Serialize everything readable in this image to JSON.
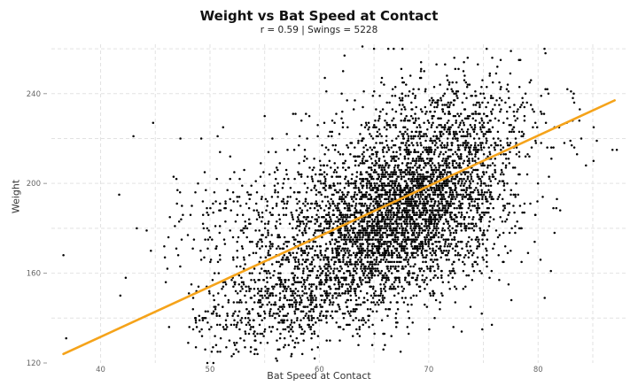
{
  "chart_data": {
    "type": "scatter",
    "title": "Weight vs Bat Speed at Contact",
    "subtitle": "r =  0.59  | Swings = 5228",
    "xlabel": "Bat Speed at Contact",
    "ylabel": "Weight",
    "xlim": [
      35.5,
      88
    ],
    "ylim": [
      120,
      262
    ],
    "x_ticks": [
      40,
      50,
      60,
      70,
      80
    ],
    "y_ticks": [
      120,
      160,
      200,
      240
    ],
    "grid": true,
    "point_color": "#000000",
    "trend_color": "#f5a31a",
    "trendline": {
      "x": [
        36.6,
        87
      ],
      "y": [
        124,
        237
      ]
    },
    "outlier_points": [
      {
        "x": 36.6,
        "y": 168
      },
      {
        "x": 41.7,
        "y": 195
      },
      {
        "x": 43,
        "y": 221
      },
      {
        "x": 44.8,
        "y": 227
      },
      {
        "x": 47.3,
        "y": 220
      },
      {
        "x": 49.2,
        "y": 220
      },
      {
        "x": 50.7,
        "y": 221
      },
      {
        "x": 51.2,
        "y": 225
      },
      {
        "x": 62.3,
        "y": 257
      },
      {
        "x": 66.3,
        "y": 260
      },
      {
        "x": 67.6,
        "y": 260
      },
      {
        "x": 71.5,
        "y": 253
      },
      {
        "x": 86.8,
        "y": 215
      },
      {
        "x": 87.2,
        "y": 215
      },
      {
        "x": 82.4,
        "y": 218
      },
      {
        "x": 81.5,
        "y": 225
      },
      {
        "x": 44.6,
        "y": 170
      },
      {
        "x": 41.8,
        "y": 150
      },
      {
        "x": 42.3,
        "y": 158
      },
      {
        "x": 48.3,
        "y": 155
      },
      {
        "x": 46.2,
        "y": 176
      },
      {
        "x": 55.0,
        "y": 230
      },
      {
        "x": 60.5,
        "y": 247
      },
      {
        "x": 58.2,
        "y": 221
      },
      {
        "x": 65,
        "y": 260
      },
      {
        "x": 66.8,
        "y": 260
      },
      {
        "x": 69.3,
        "y": 254
      }
    ],
    "clusters": [
      {
        "cx": 67.5,
        "cy": 186,
        "sx": 4.3,
        "sy": 18,
        "n": 2400
      },
      {
        "cx": 63,
        "cy": 173,
        "sx": 6,
        "sy": 20,
        "n": 1100
      },
      {
        "cx": 57,
        "cy": 148,
        "sx": 4.2,
        "sy": 10,
        "n": 550
      },
      {
        "cx": 72,
        "cy": 212,
        "sx": 4.5,
        "sy": 14,
        "n": 650
      },
      {
        "cx": 69,
        "cy": 232,
        "sx": 5,
        "sy": 11,
        "n": 250
      },
      {
        "cx": 54,
        "cy": 190,
        "sx": 4.5,
        "sy": 12,
        "n": 200
      },
      {
        "cx": 76,
        "cy": 180,
        "sx": 3,
        "sy": 16,
        "n": 78
      }
    ],
    "n_swings": 5228,
    "r": 0.59
  }
}
